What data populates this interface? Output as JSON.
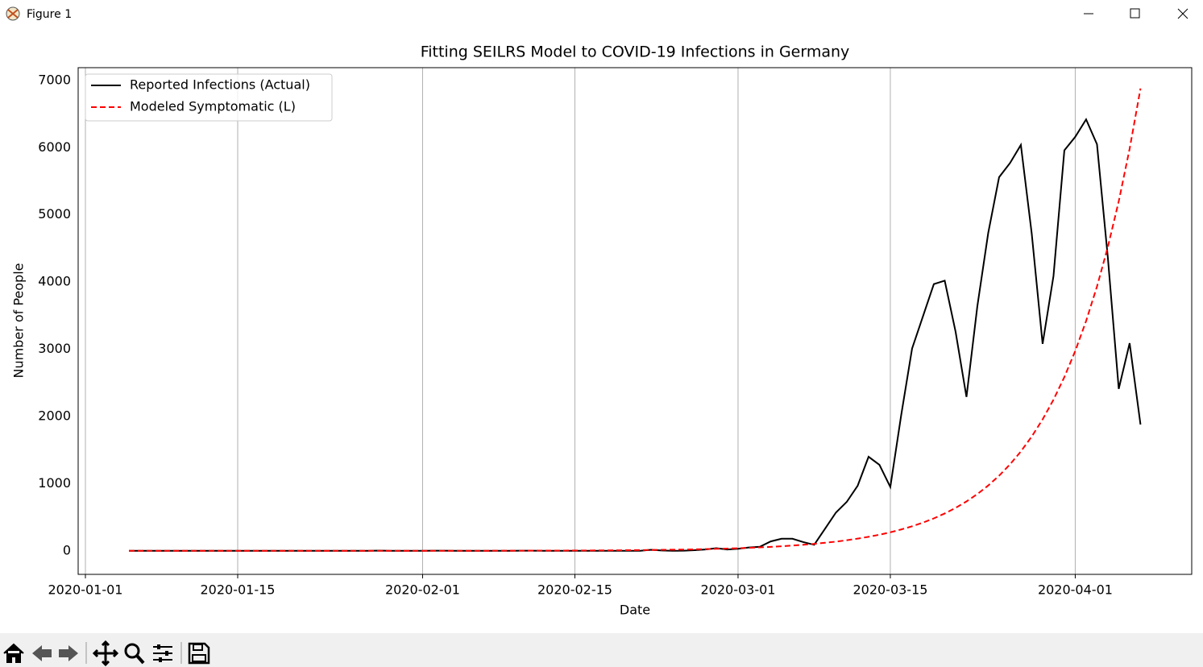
{
  "window": {
    "title": "Figure 1"
  },
  "chart_data": {
    "type": "line",
    "title": "Fitting SEILRS Model to COVID-19 Infections in Germany",
    "x_label": "Date",
    "y_label": "Number of People",
    "x": [
      "2020-01-05",
      "2020-01-06",
      "2020-01-07",
      "2020-01-08",
      "2020-01-09",
      "2020-01-10",
      "2020-01-11",
      "2020-01-12",
      "2020-01-13",
      "2020-01-14",
      "2020-01-15",
      "2020-01-16",
      "2020-01-17",
      "2020-01-18",
      "2020-01-19",
      "2020-01-20",
      "2020-01-21",
      "2020-01-22",
      "2020-01-23",
      "2020-01-24",
      "2020-01-25",
      "2020-01-26",
      "2020-01-27",
      "2020-01-28",
      "2020-01-29",
      "2020-01-30",
      "2020-01-31",
      "2020-02-01",
      "2020-02-02",
      "2020-02-03",
      "2020-02-04",
      "2020-02-05",
      "2020-02-06",
      "2020-02-07",
      "2020-02-08",
      "2020-02-09",
      "2020-02-10",
      "2020-02-11",
      "2020-02-12",
      "2020-02-13",
      "2020-02-14",
      "2020-02-15",
      "2020-02-16",
      "2020-02-17",
      "2020-02-18",
      "2020-02-19",
      "2020-02-20",
      "2020-02-21",
      "2020-02-22",
      "2020-02-23",
      "2020-02-24",
      "2020-02-25",
      "2020-02-26",
      "2020-02-27",
      "2020-02-28",
      "2020-02-29",
      "2020-03-01",
      "2020-03-02",
      "2020-03-03",
      "2020-03-04",
      "2020-03-05",
      "2020-03-06",
      "2020-03-07",
      "2020-03-08",
      "2020-03-09",
      "2020-03-10",
      "2020-03-11",
      "2020-03-12",
      "2020-03-13",
      "2020-03-14",
      "2020-03-15",
      "2020-03-16",
      "2020-03-17",
      "2020-03-18",
      "2020-03-19",
      "2020-03-20",
      "2020-03-21",
      "2020-03-22",
      "2020-03-23",
      "2020-03-24",
      "2020-03-25",
      "2020-03-26",
      "2020-03-27",
      "2020-03-28",
      "2020-03-29",
      "2020-03-30",
      "2020-03-31",
      "2020-04-01",
      "2020-04-02",
      "2020-04-03",
      "2020-04-04",
      "2020-04-05",
      "2020-04-06",
      "2020-04-07"
    ],
    "series": [
      {
        "name": "Reported Infections (Actual)",
        "color": "#000000",
        "linestyle": "solid",
        "values": [
          0,
          0,
          0,
          0,
          0,
          0,
          0,
          0,
          0,
          0,
          0,
          0,
          0,
          0,
          0,
          0,
          0,
          0,
          0,
          0,
          0,
          0,
          1,
          3,
          0,
          0,
          1,
          1,
          2,
          2,
          0,
          0,
          1,
          1,
          0,
          0,
          2,
          2,
          0,
          0,
          0,
          0,
          0,
          0,
          0,
          0,
          0,
          0,
          15,
          5,
          0,
          2,
          10,
          20,
          40,
          20,
          30,
          50,
          60,
          140,
          180,
          180,
          130,
          90,
          330,
          570,
          730,
          970,
          1400,
          1280,
          950,
          2020,
          3010,
          3490,
          3970,
          4020,
          3260,
          2290,
          3640,
          4730,
          5560,
          5770,
          6040,
          4720,
          3080,
          4090,
          5960,
          6160,
          6420,
          6050,
          4360,
          2410,
          3090,
          1880
        ]
      },
      {
        "name": "Modeled Symptomatic (L)",
        "color": "#ff0000",
        "linestyle": "dashed",
        "values": [
          0,
          0,
          0,
          0,
          0,
          0,
          0,
          0,
          0,
          0,
          0,
          0,
          0,
          0,
          0,
          0,
          0,
          0,
          0,
          0,
          0,
          0,
          0,
          0,
          0,
          0,
          0,
          1,
          1,
          1,
          1,
          1,
          1,
          1,
          2,
          2,
          2,
          3,
          3,
          3,
          4,
          5,
          5,
          6,
          7,
          8,
          10,
          11,
          13,
          15,
          17,
          19,
          22,
          26,
          30,
          34,
          39,
          45,
          52,
          59,
          68,
          79,
          90,
          104,
          120,
          137,
          158,
          182,
          209,
          240,
          276,
          318,
          365,
          420,
          483,
          556,
          639,
          735,
          845,
          972,
          1118,
          1286,
          1479,
          1701,
          1956,
          2249,
          2586,
          2974,
          3421,
          3934,
          4524,
          5202,
          5983,
          6880
        ]
      }
    ],
    "xlim": [
      "2019-12-31T08:00",
      "2020-04-11T17:00"
    ],
    "xticks": [
      "2020-01-01",
      "2020-01-15",
      "2020-02-01",
      "2020-02-15",
      "2020-03-01",
      "2020-03-15",
      "2020-04-01"
    ],
    "ylim": [
      -350,
      7190
    ],
    "yticks": [
      0,
      1000,
      2000,
      3000,
      4000,
      5000,
      6000,
      7000
    ],
    "grid": true,
    "legend": "upper-left"
  }
}
